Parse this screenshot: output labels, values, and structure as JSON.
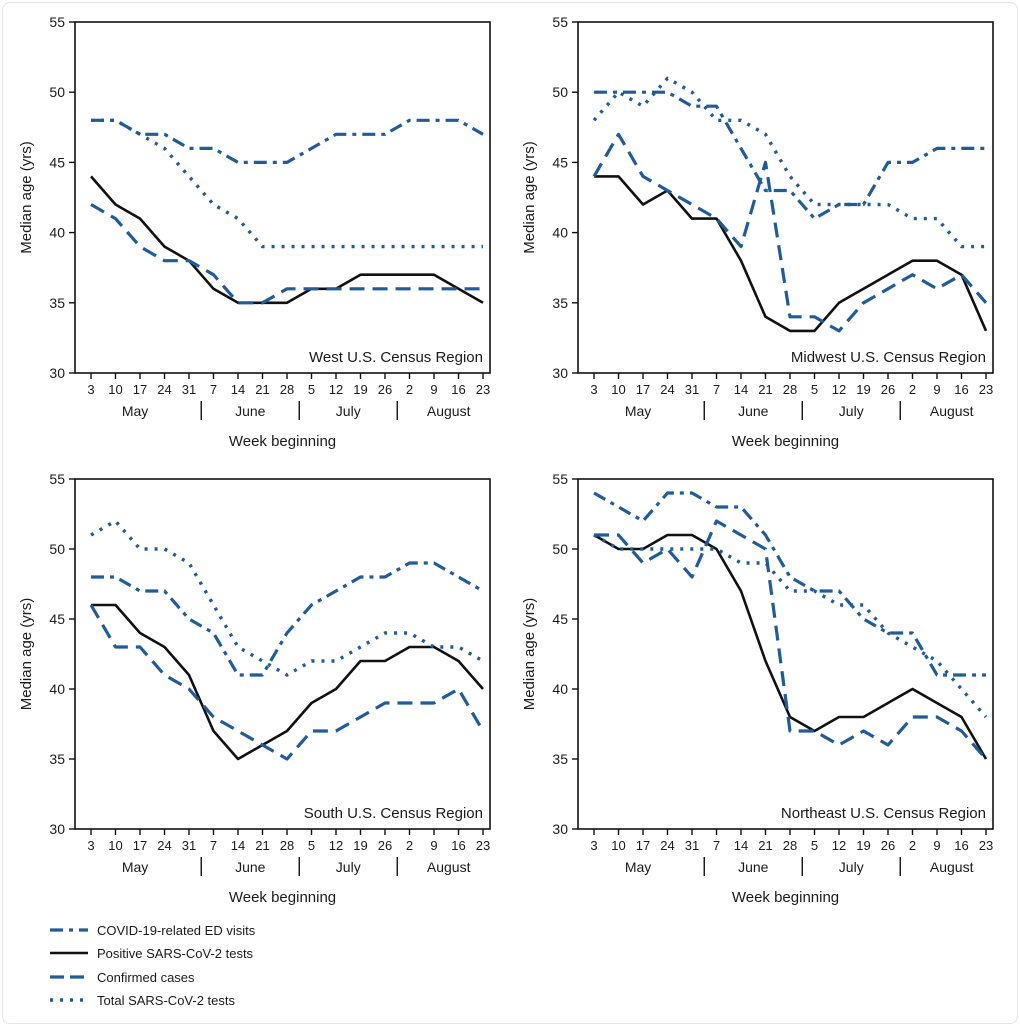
{
  "colors": {
    "blue": "#1f5c99",
    "black": "#111111"
  },
  "chart_data": [
    {
      "type": "line",
      "title": "West U.S. Census Region",
      "xlabel": "Week beginning",
      "ylabel": "Median age (yrs)",
      "ylim": [
        30,
        55
      ],
      "yticks": [
        30,
        35,
        40,
        45,
        50,
        55
      ],
      "categories": [
        "3",
        "10",
        "17",
        "24",
        "31",
        "7",
        "14",
        "21",
        "28",
        "5",
        "12",
        "19",
        "26",
        "2",
        "9",
        "16",
        "23"
      ],
      "months": [
        "May",
        "June",
        "July",
        "August"
      ],
      "grid": false,
      "series": [
        {
          "name": "COVID-19-related ED visits",
          "values": [
            48,
            48,
            47,
            47,
            46,
            46,
            45,
            45,
            45,
            46,
            47,
            47,
            47,
            48,
            48,
            48,
            47
          ]
        },
        {
          "name": "Positive SARS-CoV-2 tests",
          "values": [
            44,
            42,
            41,
            39,
            38,
            36,
            35,
            35,
            35,
            36,
            36,
            37,
            37,
            37,
            37,
            36,
            35
          ]
        },
        {
          "name": "Confirmed cases",
          "values": [
            42,
            41,
            39,
            38,
            38,
            37,
            35,
            35,
            36,
            36,
            36,
            36,
            36,
            36,
            36,
            36,
            36
          ]
        },
        {
          "name": "Total SARS-CoV-2 tests",
          "values": [
            48,
            48,
            47,
            46,
            44,
            42,
            41,
            39,
            39,
            39,
            39,
            39,
            39,
            39,
            39,
            39,
            39
          ]
        }
      ]
    },
    {
      "type": "line",
      "title": "Midwest U.S. Census Region",
      "xlabel": "Week beginning",
      "ylabel": "Median age (yrs)",
      "ylim": [
        30,
        55
      ],
      "yticks": [
        30,
        35,
        40,
        45,
        50,
        55
      ],
      "categories": [
        "3",
        "10",
        "17",
        "24",
        "31",
        "7",
        "14",
        "21",
        "28",
        "5",
        "12",
        "19",
        "26",
        "2",
        "9",
        "16",
        "23"
      ],
      "months": [
        "May",
        "June",
        "July",
        "August"
      ],
      "grid": false,
      "series": [
        {
          "name": "COVID-19-related ED visits",
          "values": [
            50,
            50,
            50,
            50,
            49,
            49,
            46,
            43,
            43,
            41,
            42,
            42,
            45,
            45,
            46,
            46,
            46
          ]
        },
        {
          "name": "Positive SARS-CoV-2 tests",
          "values": [
            44,
            44,
            42,
            43,
            41,
            41,
            38,
            34,
            33,
            33,
            35,
            36,
            37,
            38,
            38,
            37,
            33
          ]
        },
        {
          "name": "Confirmed cases",
          "values": [
            44,
            47,
            44,
            43,
            42,
            41,
            39,
            45,
            34,
            34,
            33,
            35,
            36,
            37,
            36,
            37,
            35
          ]
        },
        {
          "name": "Total SARS-CoV-2 tests",
          "values": [
            48,
            50,
            49,
            51,
            50,
            48,
            48,
            47,
            44,
            42,
            42,
            42,
            42,
            41,
            41,
            39,
            39
          ]
        }
      ]
    },
    {
      "type": "line",
      "title": "South U.S. Census Region",
      "xlabel": "Week beginning",
      "ylabel": "Median age (yrs)",
      "ylim": [
        30,
        55
      ],
      "yticks": [
        30,
        35,
        40,
        45,
        50,
        55
      ],
      "categories": [
        "3",
        "10",
        "17",
        "24",
        "31",
        "7",
        "14",
        "21",
        "28",
        "5",
        "12",
        "19",
        "26",
        "2",
        "9",
        "16",
        "23"
      ],
      "months": [
        "May",
        "June",
        "July",
        "August"
      ],
      "grid": false,
      "series": [
        {
          "name": "COVID-19-related ED visits",
          "values": [
            48,
            48,
            47,
            47,
            45,
            44,
            41,
            41,
            44,
            46,
            47,
            48,
            48,
            49,
            49,
            48,
            47
          ]
        },
        {
          "name": "Positive SARS-CoV-2 tests",
          "values": [
            46,
            46,
            44,
            43,
            41,
            37,
            35,
            36,
            37,
            39,
            40,
            42,
            42,
            43,
            43,
            42,
            40
          ]
        },
        {
          "name": "Confirmed cases",
          "values": [
            46,
            43,
            43,
            41,
            40,
            38,
            37,
            36,
            35,
            37,
            37,
            38,
            39,
            39,
            39,
            40,
            37
          ]
        },
        {
          "name": "Total SARS-CoV-2 tests",
          "values": [
            51,
            52,
            50,
            50,
            49,
            46,
            43,
            42,
            41,
            42,
            42,
            43,
            44,
            44,
            43,
            43,
            42
          ]
        }
      ]
    },
    {
      "type": "line",
      "title": "Northeast U.S. Census Region",
      "xlabel": "Week beginning",
      "ylabel": "Median age (yrs)",
      "ylim": [
        30,
        55
      ],
      "yticks": [
        30,
        35,
        40,
        45,
        50,
        55
      ],
      "categories": [
        "3",
        "10",
        "17",
        "24",
        "31",
        "7",
        "14",
        "21",
        "28",
        "5",
        "12",
        "19",
        "26",
        "2",
        "9",
        "16",
        "23"
      ],
      "months": [
        "May",
        "June",
        "July",
        "August"
      ],
      "grid": false,
      "series": [
        {
          "name": "COVID-19-related ED visits",
          "values": [
            54,
            53,
            52,
            54,
            54,
            53,
            53,
            51,
            48,
            47,
            47,
            45,
            44,
            44,
            41,
            41,
            41
          ]
        },
        {
          "name": "Positive SARS-CoV-2 tests",
          "values": [
            51,
            50,
            50,
            51,
            51,
            50,
            47,
            42,
            38,
            37,
            38,
            38,
            39,
            40,
            39,
            38,
            35
          ]
        },
        {
          "name": "Confirmed cases",
          "values": [
            51,
            51,
            49,
            50,
            48,
            52,
            51,
            50,
            37,
            37,
            36,
            37,
            36,
            38,
            38,
            37,
            35
          ]
        },
        {
          "name": "Total SARS-CoV-2 tests",
          "values": [
            51,
            50,
            50,
            50,
            50,
            50,
            49,
            49,
            47,
            47,
            46,
            46,
            44,
            43,
            42,
            40,
            38
          ]
        }
      ]
    }
  ],
  "legend": {
    "placement": "bottom-left",
    "items": [
      "COVID-19-related ED visits",
      "Positive SARS-CoV-2 tests",
      "Confirmed cases",
      "Total SARS-CoV-2 tests"
    ]
  }
}
